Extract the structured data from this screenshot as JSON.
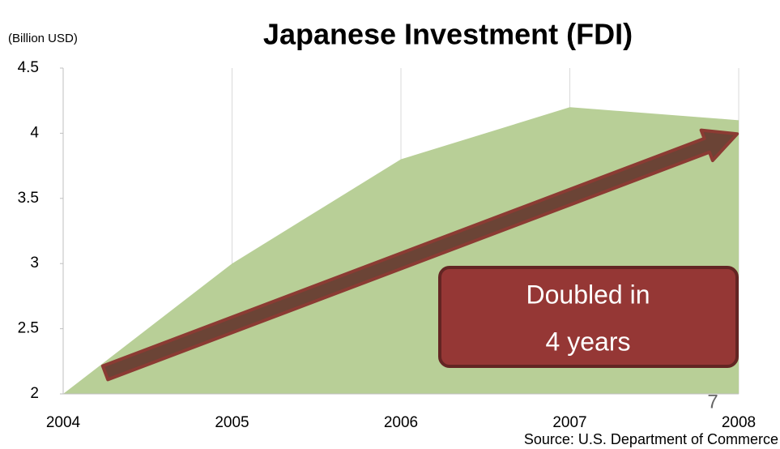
{
  "chart_data": {
    "type": "area",
    "title": "Japanese Investment (FDI)",
    "y_unit": "(Billion USD)",
    "x": [
      2004,
      2005,
      2006,
      2007,
      2008
    ],
    "values": [
      2.0,
      3.0,
      3.8,
      4.2,
      4.1
    ],
    "color": "#b8cf97",
    "xlim": [
      2004,
      2008
    ],
    "xticks": [
      2004,
      2005,
      2006,
      2007,
      2008
    ],
    "ylim": [
      2,
      4.5
    ],
    "yticks": [
      2,
      2.5,
      3,
      3.5,
      4,
      4.5
    ],
    "grid": true,
    "annotations": [
      "Doubled in",
      "4 years"
    ],
    "page_number": "7",
    "source": "Source: U.S. Department of Commerce"
  }
}
